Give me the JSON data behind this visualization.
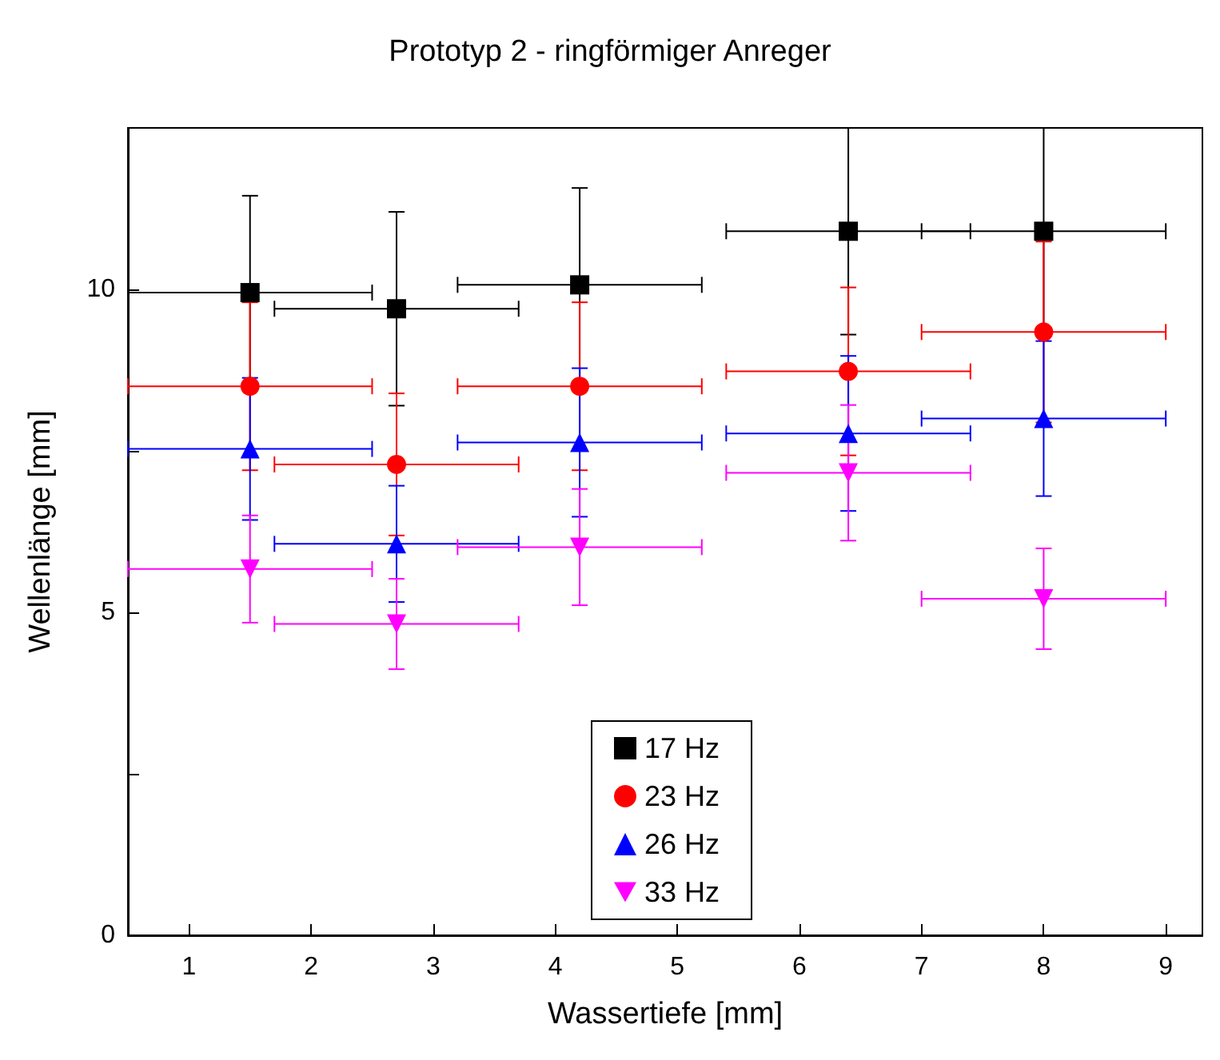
{
  "chart_data": {
    "type": "scatter",
    "title": "Prototyp 2 - ringförmiger Anreger",
    "xlabel": "Wassertiefe [mm]",
    "ylabel": "Wellenlänge [mm]",
    "xlim": [
      0.5,
      9.3
    ],
    "xticks": [
      1,
      2,
      3,
      4,
      5,
      6,
      7,
      8,
      9
    ],
    "ylim": [
      0,
      12.5
    ],
    "yticks": [
      0,
      {
        "value": 2.5,
        "label": null
      },
      5,
      {
        "value": 7.5,
        "label": null
      },
      10
    ],
    "grid": false,
    "legend": "bottom",
    "series": [
      {
        "name": "17 Hz",
        "color": "#000000",
        "marker": "square",
        "x": [
          1.5,
          2.7,
          4.2,
          6.4,
          8
        ],
        "values": [
          9.95,
          9.7,
          10.07,
          10.9,
          10.9
        ],
        "errors": [
          1.5,
          1.5,
          1.5,
          1.6,
          1.6
        ],
        "xerrors": [
          1,
          1,
          1,
          1,
          1
        ]
      },
      {
        "name": "23 Hz",
        "color": "#ff0000",
        "marker": "circle",
        "x": [
          1.5,
          2.7,
          4.2,
          6.4,
          8
        ],
        "values": [
          8.5,
          7.29,
          8.5,
          8.73,
          9.34
        ],
        "errors": [
          1.3,
          1.1,
          1.3,
          1.3,
          1.4
        ],
        "xerrors": [
          1,
          1,
          1,
          1,
          1
        ]
      },
      {
        "name": "26 Hz",
        "color": "#0000ff",
        "marker": "triangle",
        "x": [
          1.5,
          2.7,
          4.2,
          6.4,
          8
        ],
        "values": [
          7.53,
          6.06,
          7.63,
          7.77,
          8.0
        ],
        "errors": [
          1.1,
          0.9,
          1.15,
          1.2,
          1.2
        ],
        "xerrors": [
          1,
          1,
          1,
          1,
          1
        ]
      },
      {
        "name": "33 Hz",
        "color": "#ff00ff",
        "marker": "triangle-down",
        "x": [
          1.5,
          2.7,
          4.2,
          6.4,
          8
        ],
        "values": [
          5.67,
          4.82,
          6.01,
          7.16,
          5.21
        ],
        "errors": [
          0.83,
          0.7,
          0.9,
          1.05,
          0.78
        ],
        "xerrors": [
          1,
          1,
          1,
          1,
          1
        ]
      }
    ]
  }
}
